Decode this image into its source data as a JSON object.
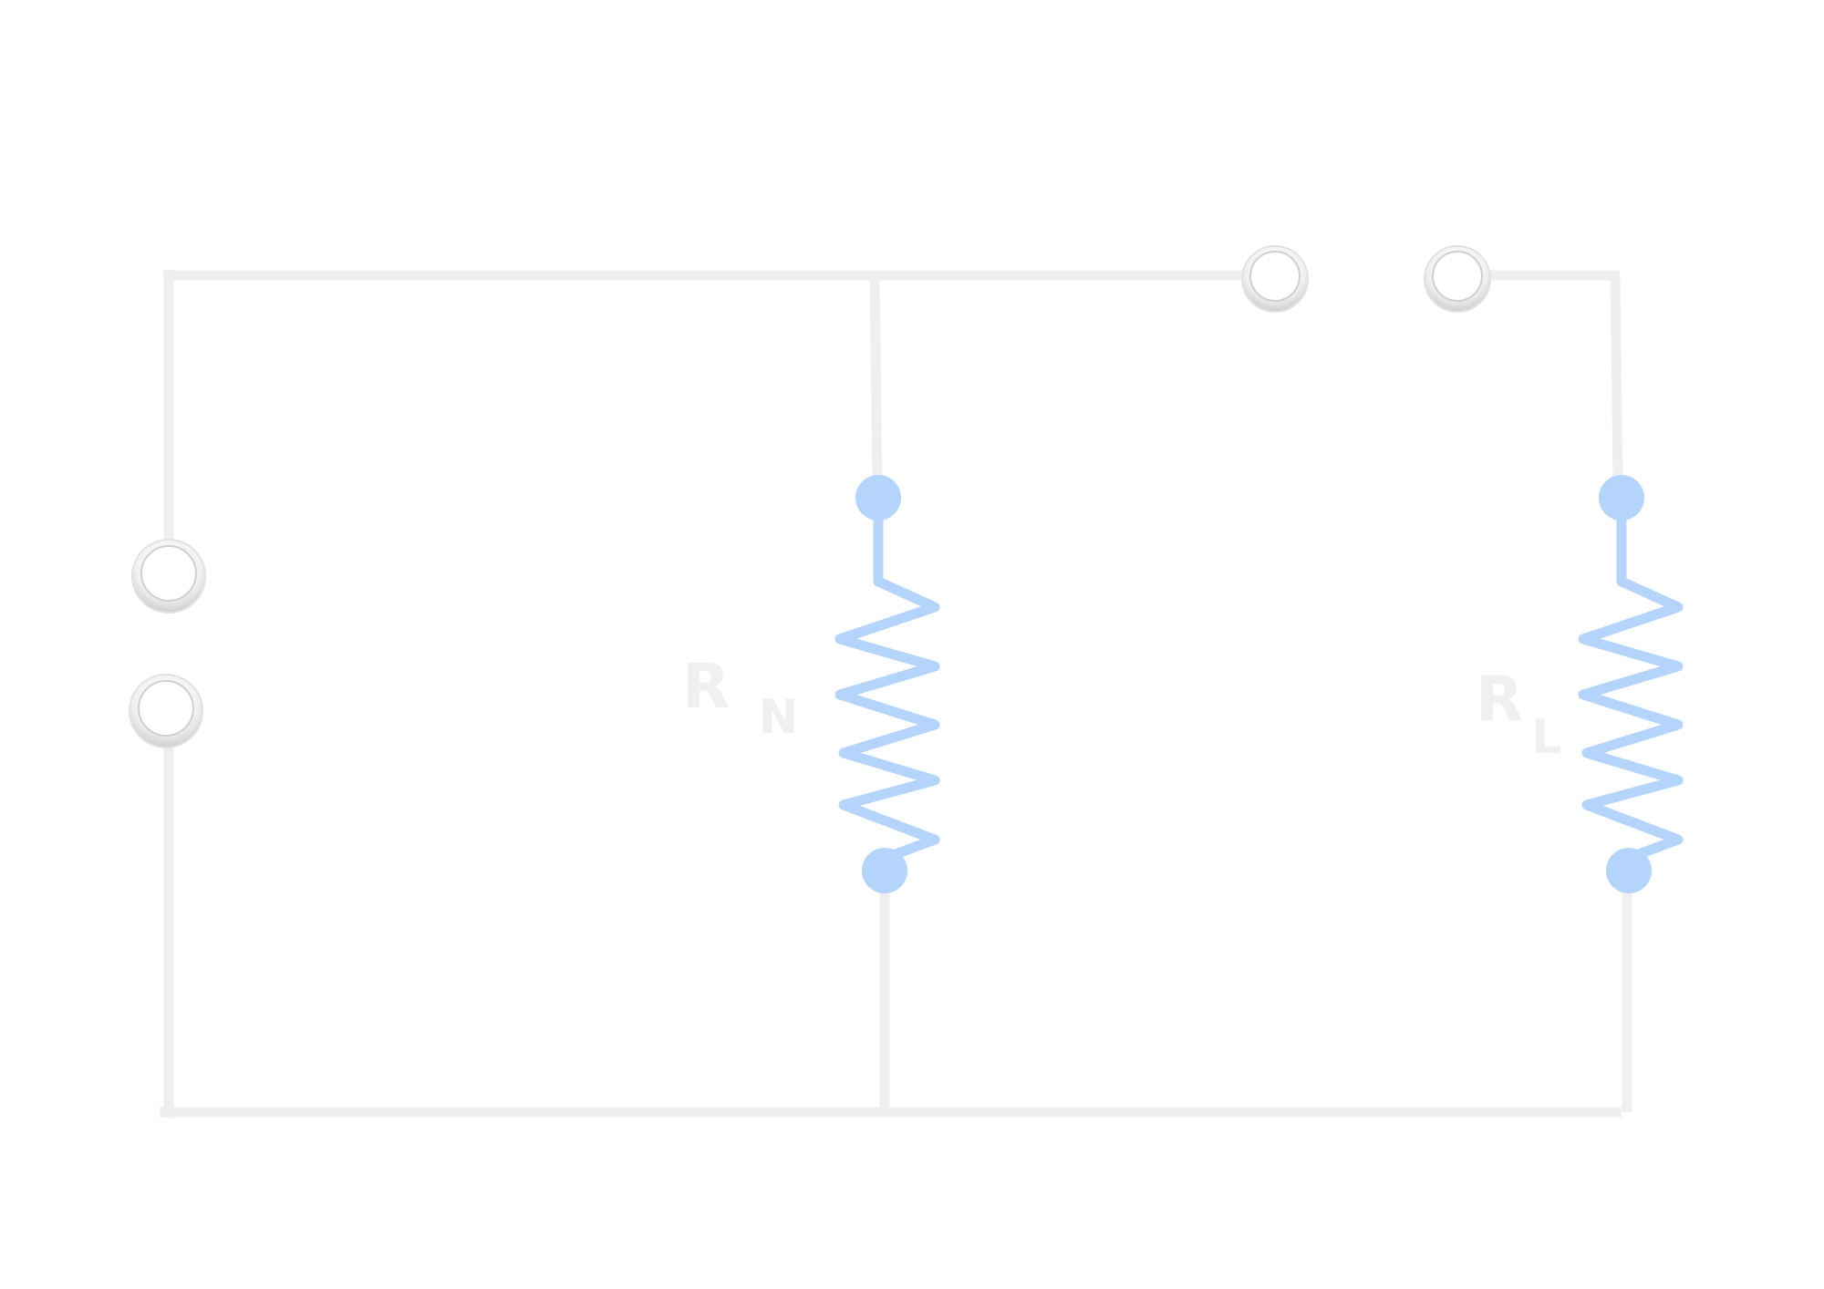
{
  "colors": {
    "wire": "#efefef",
    "resistor": "#b5d4fb",
    "label": "#f0f0f0",
    "terminal_ring": "#dcdcdc"
  },
  "resistors": [
    {
      "id": "rn",
      "label": "R",
      "subscript": "N"
    },
    {
      "id": "rl",
      "label": "R",
      "subscript": "L"
    }
  ],
  "terminals": [
    {
      "id": "left-top",
      "icon": "terminal-circle-icon"
    },
    {
      "id": "left-bottom",
      "icon": "terminal-circle-icon"
    },
    {
      "id": "top-left",
      "icon": "terminal-circle-icon"
    },
    {
      "id": "top-right",
      "icon": "terminal-circle-icon"
    }
  ]
}
